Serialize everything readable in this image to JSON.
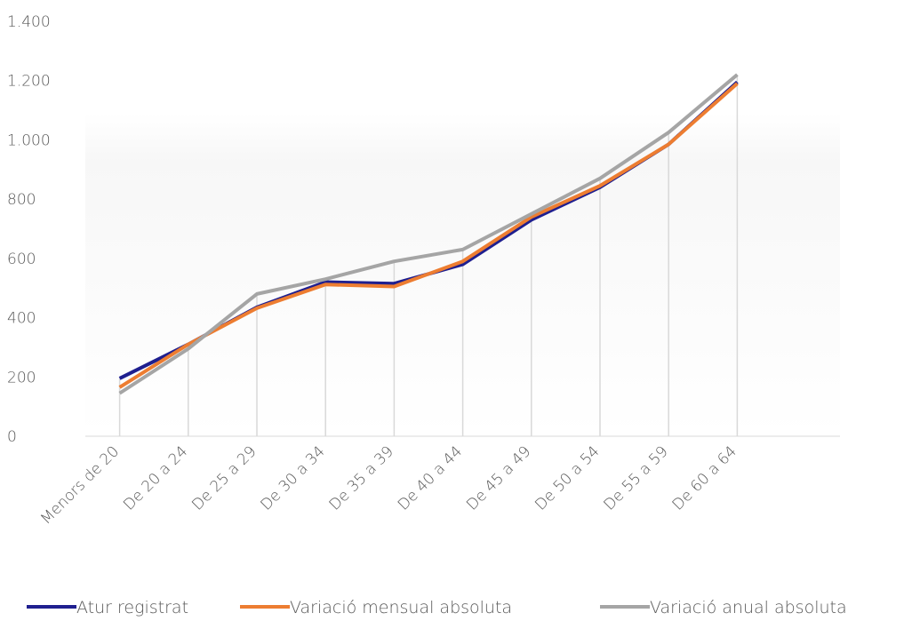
{
  "chart_data": {
    "type": "line",
    "categories": [
      "Menors de 20",
      "De 20 a 24",
      "De 25 a 29",
      "De 30 a 34",
      "De 35 a 39",
      "De 40 a 44",
      "De 45 a 49",
      "De 50 a 54",
      "De 55 a 59",
      "De 60 a 64"
    ],
    "series": [
      {
        "name": "Atur registrat",
        "color": "#1f1f8f",
        "values": [
          195,
          310,
          435,
          520,
          515,
          580,
          730,
          840,
          985,
          1195
        ]
      },
      {
        "name": "Variació mensual absoluta",
        "color": "#ed7d31",
        "values": [
          165,
          310,
          432,
          512,
          505,
          590,
          740,
          845,
          985,
          1190
        ]
      },
      {
        "name": "Variació anual absoluta",
        "color": "#a5a5a5",
        "values": [
          145,
          295,
          480,
          530,
          590,
          630,
          750,
          870,
          1025,
          1220
        ]
      }
    ],
    "ylim": [
      0,
      1400
    ],
    "yticks": [
      0,
      200,
      400,
      600,
      800,
      {
        "value": 1000,
        "label": "1.000"
      },
      {
        "value": 1200,
        "label": "1.200"
      },
      {
        "value": 1400,
        "label": "1.400"
      }
    ],
    "grid": false,
    "legend": "bottom"
  }
}
